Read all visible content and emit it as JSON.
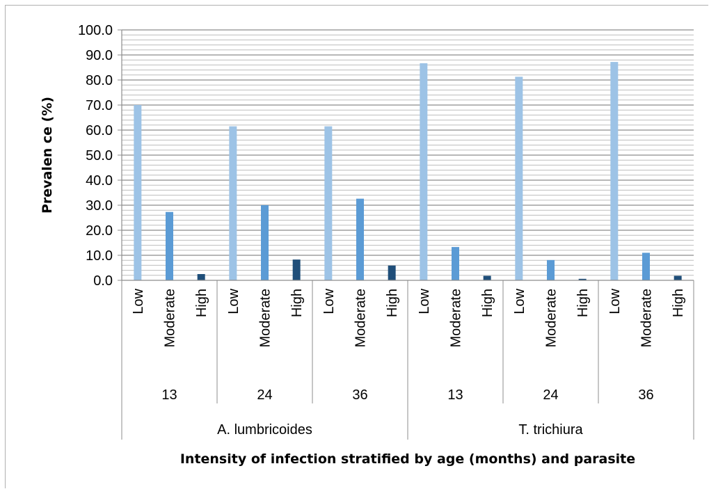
{
  "chart_data": {
    "type": "bar",
    "ylabel": "Prevalen ce (%)",
    "xlabel": "Intensity of infection stratified by age (months) and parasite",
    "ylim": [
      0,
      100
    ],
    "y_ticks": [
      "0.0",
      "10.0",
      "20.0",
      "30.0",
      "40.0",
      "50.0",
      "60.0",
      "70.0",
      "80.0",
      "90.0",
      "100.0"
    ],
    "grid": "horizontal minor lines every 2.0",
    "legend": "none",
    "intensity_levels": [
      "Low",
      "Moderate",
      "High"
    ],
    "colors": {
      "Low": "#9dc3e6",
      "Moderate": "#5b9bd5",
      "High": "#1f4e79"
    },
    "groups": [
      {
        "parasite": "A. lumbricoides",
        "age": "13",
        "values": [
          70.0,
          27.3,
          2.5
        ]
      },
      {
        "parasite": "A. lumbricoides",
        "age": "24",
        "values": [
          61.5,
          30.0,
          8.3
        ]
      },
      {
        "parasite": "A. lumbricoides",
        "age": "36",
        "values": [
          61.5,
          32.6,
          5.9
        ]
      },
      {
        "parasite": "T. trichiura",
        "age": "13",
        "values": [
          86.7,
          13.3,
          1.8
        ]
      },
      {
        "parasite": "T. trichiura",
        "age": "24",
        "values": [
          81.3,
          8.1,
          0.6
        ]
      },
      {
        "parasite": "T. trichiura",
        "age": "36",
        "values": [
          87.2,
          11.0,
          1.8
        ]
      }
    ],
    "parasites": [
      "A. lumbricoides",
      "T. trichiura"
    ]
  }
}
